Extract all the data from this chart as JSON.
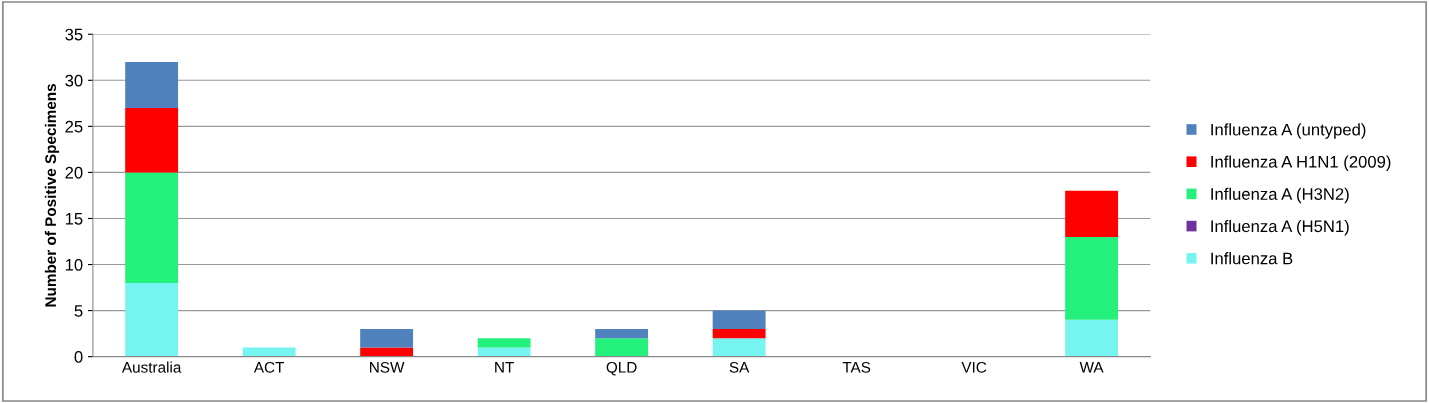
{
  "chart_data": {
    "type": "bar",
    "stacked": true,
    "ylabel": "Number of Positive Specimens",
    "categories": [
      "Australia",
      "ACT",
      "NSW",
      "NT",
      "QLD",
      "SA",
      "TAS",
      "VIC",
      "WA"
    ],
    "series": [
      {
        "name": "Influenza B",
        "color": "#75f4f0",
        "values": [
          8,
          1,
          0,
          1,
          0,
          2,
          0,
          0,
          4
        ]
      },
      {
        "name": "Influenza A (H5N1)",
        "color": "#7030a0",
        "values": [
          0,
          0,
          0,
          0,
          0,
          0,
          0,
          0,
          0
        ]
      },
      {
        "name": "Influenza A (H3N2)",
        "color": "#24f07c",
        "values": [
          12,
          0,
          0,
          1,
          2,
          0,
          0,
          0,
          9
        ]
      },
      {
        "name": "Influenza A H1N1 (2009)",
        "color": "#ff0000",
        "values": [
          7,
          0,
          1,
          0,
          0,
          1,
          0,
          0,
          5
        ]
      },
      {
        "name": "Influenza A (untyped)",
        "color": "#4f81bd",
        "values": [
          5,
          0,
          2,
          0,
          1,
          2,
          0,
          0,
          0
        ]
      }
    ],
    "ylim": [
      0,
      35
    ],
    "yticks": [
      0,
      5,
      10,
      15,
      20,
      25,
      30,
      35
    ],
    "grid": "y",
    "legend": "right"
  }
}
